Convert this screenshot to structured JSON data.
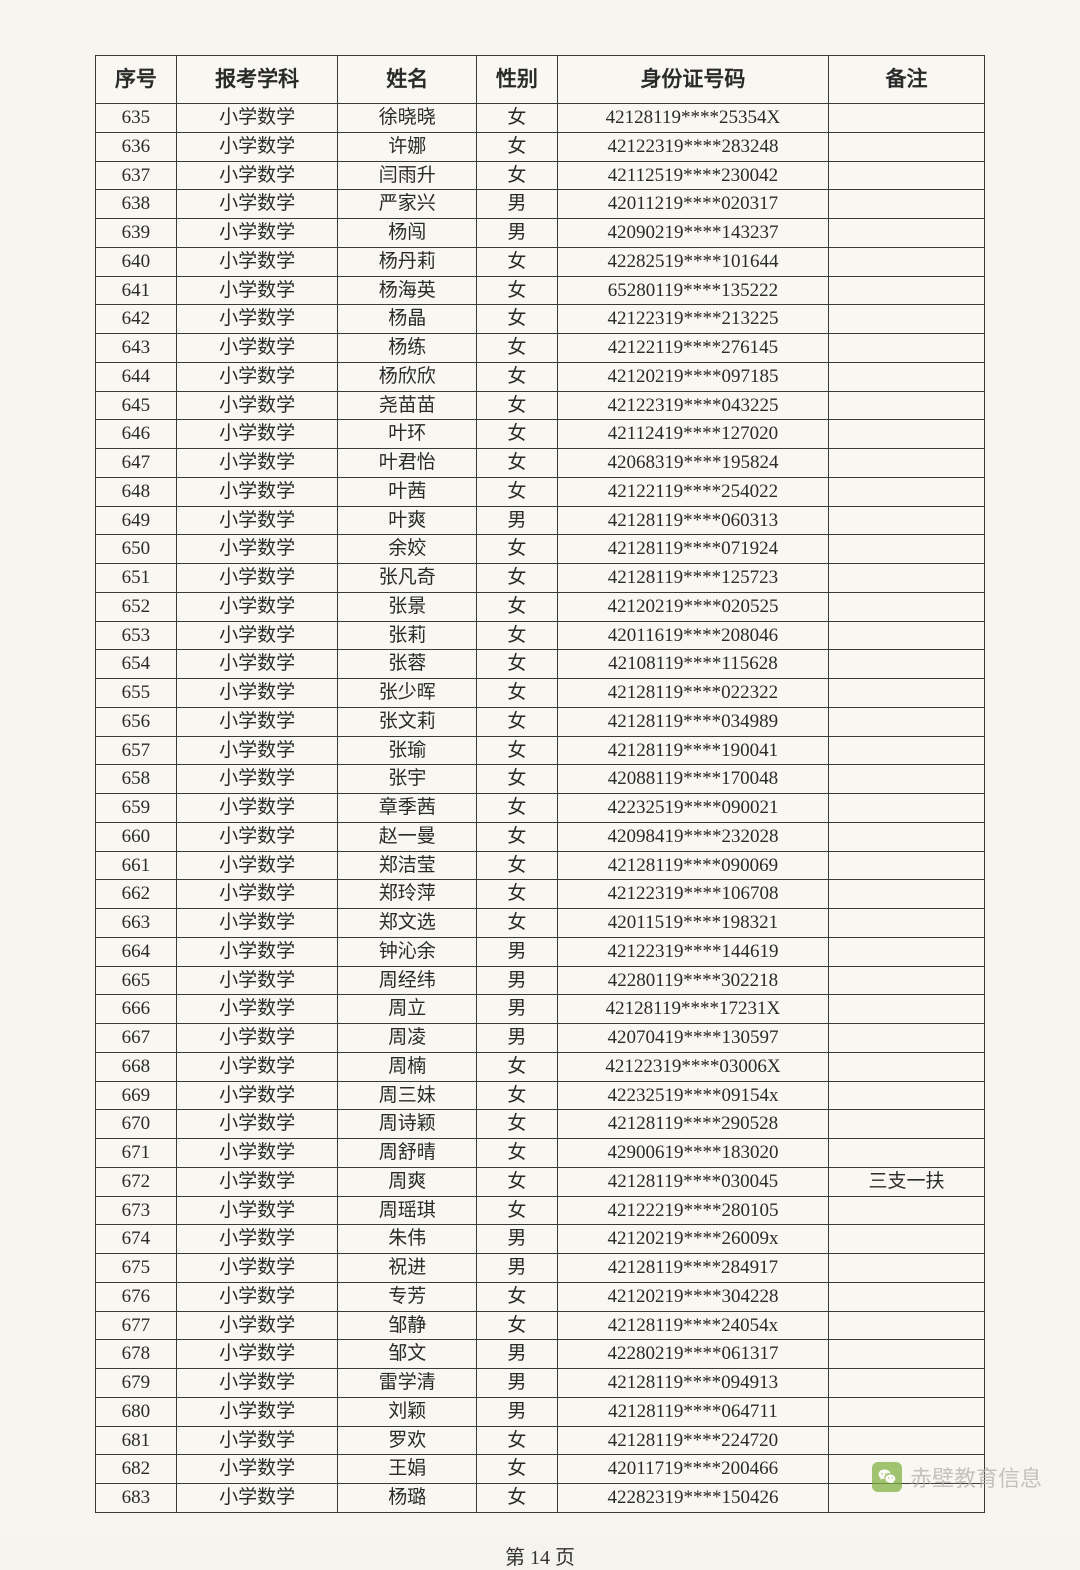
{
  "table": {
    "headers": {
      "seq": "序号",
      "subject": "报考学科",
      "name": "姓名",
      "gender": "性别",
      "id": "身份证号码",
      "remark": "备注"
    },
    "rows": [
      {
        "seq": "635",
        "subject": "小学数学",
        "name": "徐晓晓",
        "gender": "女",
        "id": "42128119****25354X",
        "remark": ""
      },
      {
        "seq": "636",
        "subject": "小学数学",
        "name": "许娜",
        "gender": "女",
        "id": "42122319****283248",
        "remark": ""
      },
      {
        "seq": "637",
        "subject": "小学数学",
        "name": "闫雨升",
        "gender": "女",
        "id": "42112519****230042",
        "remark": ""
      },
      {
        "seq": "638",
        "subject": "小学数学",
        "name": "严家兴",
        "gender": "男",
        "id": "42011219****020317",
        "remark": ""
      },
      {
        "seq": "639",
        "subject": "小学数学",
        "name": "杨闯",
        "gender": "男",
        "id": "42090219****143237",
        "remark": ""
      },
      {
        "seq": "640",
        "subject": "小学数学",
        "name": "杨丹莉",
        "gender": "女",
        "id": "42282519****101644",
        "remark": ""
      },
      {
        "seq": "641",
        "subject": "小学数学",
        "name": "杨海英",
        "gender": "女",
        "id": "65280119****135222",
        "remark": ""
      },
      {
        "seq": "642",
        "subject": "小学数学",
        "name": "杨晶",
        "gender": "女",
        "id": "42122319****213225",
        "remark": ""
      },
      {
        "seq": "643",
        "subject": "小学数学",
        "name": "杨练",
        "gender": "女",
        "id": "42122119****276145",
        "remark": ""
      },
      {
        "seq": "644",
        "subject": "小学数学",
        "name": "杨欣欣",
        "gender": "女",
        "id": "42120219****097185",
        "remark": ""
      },
      {
        "seq": "645",
        "subject": "小学数学",
        "name": "尧苗苗",
        "gender": "女",
        "id": "42122319****043225",
        "remark": ""
      },
      {
        "seq": "646",
        "subject": "小学数学",
        "name": "叶环",
        "gender": "女",
        "id": "42112419****127020",
        "remark": ""
      },
      {
        "seq": "647",
        "subject": "小学数学",
        "name": "叶君怡",
        "gender": "女",
        "id": "42068319****195824",
        "remark": ""
      },
      {
        "seq": "648",
        "subject": "小学数学",
        "name": "叶茜",
        "gender": "女",
        "id": "42122119****254022",
        "remark": ""
      },
      {
        "seq": "649",
        "subject": "小学数学",
        "name": "叶爽",
        "gender": "男",
        "id": "42128119****060313",
        "remark": ""
      },
      {
        "seq": "650",
        "subject": "小学数学",
        "name": "余姣",
        "gender": "女",
        "id": "42128119****071924",
        "remark": ""
      },
      {
        "seq": "651",
        "subject": "小学数学",
        "name": "张凡奇",
        "gender": "女",
        "id": "42128119****125723",
        "remark": ""
      },
      {
        "seq": "652",
        "subject": "小学数学",
        "name": "张景",
        "gender": "女",
        "id": "42120219****020525",
        "remark": ""
      },
      {
        "seq": "653",
        "subject": "小学数学",
        "name": "张莉",
        "gender": "女",
        "id": "42011619****208046",
        "remark": ""
      },
      {
        "seq": "654",
        "subject": "小学数学",
        "name": "张蓉",
        "gender": "女",
        "id": "42108119****115628",
        "remark": ""
      },
      {
        "seq": "655",
        "subject": "小学数学",
        "name": "张少晖",
        "gender": "女",
        "id": "42128119****022322",
        "remark": ""
      },
      {
        "seq": "656",
        "subject": "小学数学",
        "name": "张文莉",
        "gender": "女",
        "id": "42128119****034989",
        "remark": ""
      },
      {
        "seq": "657",
        "subject": "小学数学",
        "name": "张瑜",
        "gender": "女",
        "id": "42128119****190041",
        "remark": ""
      },
      {
        "seq": "658",
        "subject": "小学数学",
        "name": "张宇",
        "gender": "女",
        "id": "42088119****170048",
        "remark": ""
      },
      {
        "seq": "659",
        "subject": "小学数学",
        "name": "章季茜",
        "gender": "女",
        "id": "42232519****090021",
        "remark": ""
      },
      {
        "seq": "660",
        "subject": "小学数学",
        "name": "赵一曼",
        "gender": "女",
        "id": "42098419****232028",
        "remark": ""
      },
      {
        "seq": "661",
        "subject": "小学数学",
        "name": "郑洁莹",
        "gender": "女",
        "id": "42128119****090069",
        "remark": ""
      },
      {
        "seq": "662",
        "subject": "小学数学",
        "name": "郑玲萍",
        "gender": "女",
        "id": "42122319****106708",
        "remark": ""
      },
      {
        "seq": "663",
        "subject": "小学数学",
        "name": "郑文选",
        "gender": "女",
        "id": "42011519****198321",
        "remark": ""
      },
      {
        "seq": "664",
        "subject": "小学数学",
        "name": "钟沁余",
        "gender": "男",
        "id": "42122319****144619",
        "remark": ""
      },
      {
        "seq": "665",
        "subject": "小学数学",
        "name": "周经纬",
        "gender": "男",
        "id": "42280119****302218",
        "remark": ""
      },
      {
        "seq": "666",
        "subject": "小学数学",
        "name": "周立",
        "gender": "男",
        "id": "42128119****17231X",
        "remark": ""
      },
      {
        "seq": "667",
        "subject": "小学数学",
        "name": "周凌",
        "gender": "男",
        "id": "42070419****130597",
        "remark": ""
      },
      {
        "seq": "668",
        "subject": "小学数学",
        "name": "周楠",
        "gender": "女",
        "id": "42122319****03006X",
        "remark": ""
      },
      {
        "seq": "669",
        "subject": "小学数学",
        "name": "周三妹",
        "gender": "女",
        "id": "42232519****09154x",
        "remark": ""
      },
      {
        "seq": "670",
        "subject": "小学数学",
        "name": "周诗颖",
        "gender": "女",
        "id": "42128119****290528",
        "remark": ""
      },
      {
        "seq": "671",
        "subject": "小学数学",
        "name": "周舒晴",
        "gender": "女",
        "id": "42900619****183020",
        "remark": ""
      },
      {
        "seq": "672",
        "subject": "小学数学",
        "name": "周爽",
        "gender": "女",
        "id": "42128119****030045",
        "remark": "三支一扶"
      },
      {
        "seq": "673",
        "subject": "小学数学",
        "name": "周瑶琪",
        "gender": "女",
        "id": "42122219****280105",
        "remark": ""
      },
      {
        "seq": "674",
        "subject": "小学数学",
        "name": "朱伟",
        "gender": "男",
        "id": "42120219****26009x",
        "remark": ""
      },
      {
        "seq": "675",
        "subject": "小学数学",
        "name": "祝进",
        "gender": "男",
        "id": "42128119****284917",
        "remark": ""
      },
      {
        "seq": "676",
        "subject": "小学数学",
        "name": "专芳",
        "gender": "女",
        "id": "42120219****304228",
        "remark": ""
      },
      {
        "seq": "677",
        "subject": "小学数学",
        "name": "邹静",
        "gender": "女",
        "id": "42128119****24054x",
        "remark": ""
      },
      {
        "seq": "678",
        "subject": "小学数学",
        "name": "邹文",
        "gender": "男",
        "id": "42280219****061317",
        "remark": ""
      },
      {
        "seq": "679",
        "subject": "小学数学",
        "name": "雷学清",
        "gender": "男",
        "id": "42128119****094913",
        "remark": ""
      },
      {
        "seq": "680",
        "subject": "小学数学",
        "name": "刘颖",
        "gender": "男",
        "id": "42128119****064711",
        "remark": ""
      },
      {
        "seq": "681",
        "subject": "小学数学",
        "name": "罗欢",
        "gender": "女",
        "id": "42128119****224720",
        "remark": ""
      },
      {
        "seq": "682",
        "subject": "小学数学",
        "name": "王娟",
        "gender": "女",
        "id": "42011719****200466",
        "remark": ""
      },
      {
        "seq": "683",
        "subject": "小学数学",
        "name": "杨璐",
        "gender": "女",
        "id": "42282319****150426",
        "remark": ""
      }
    ]
  },
  "footer": {
    "page": "第 14 页"
  },
  "watermark": {
    "text": "赤壁教育信息"
  },
  "colors": {
    "page_bg": "#f5f3ee",
    "border": "#3a3a3a",
    "text": "#2a2a2a",
    "watermark_text": "#b0aea9",
    "watermark_icon": "#7fb03e"
  }
}
